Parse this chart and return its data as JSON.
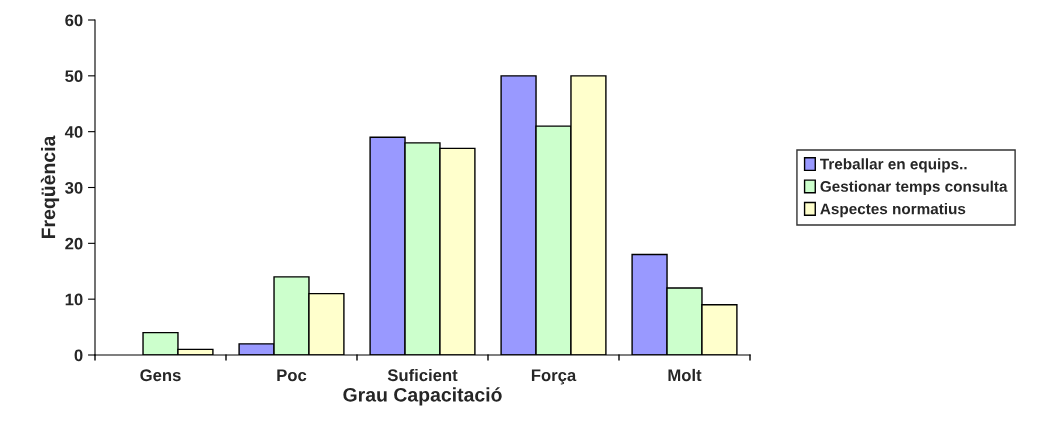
{
  "chart_data": {
    "type": "bar",
    "xlabel": "Grau Capacitació",
    "ylabel": "Freqüència",
    "categories": [
      "Gens",
      "Poc",
      "Suficient",
      "Força",
      "Molt"
    ],
    "series": [
      {
        "name": "Treballar en equips..",
        "color": "#9999ff",
        "values": [
          null,
          2,
          39,
          50,
          18
        ]
      },
      {
        "name": "Gestionar temps consulta",
        "color": "#ccffcc",
        "values": [
          4,
          14,
          38,
          41,
          12
        ]
      },
      {
        "name": "Aspectes normatius",
        "color": "#ffffcc",
        "values": [
          1,
          11,
          37,
          50,
          9
        ]
      }
    ],
    "ylim": [
      0,
      60
    ],
    "yticks": [
      0,
      10,
      20,
      30,
      40,
      50,
      60
    ],
    "grid": false,
    "legend": "right"
  }
}
